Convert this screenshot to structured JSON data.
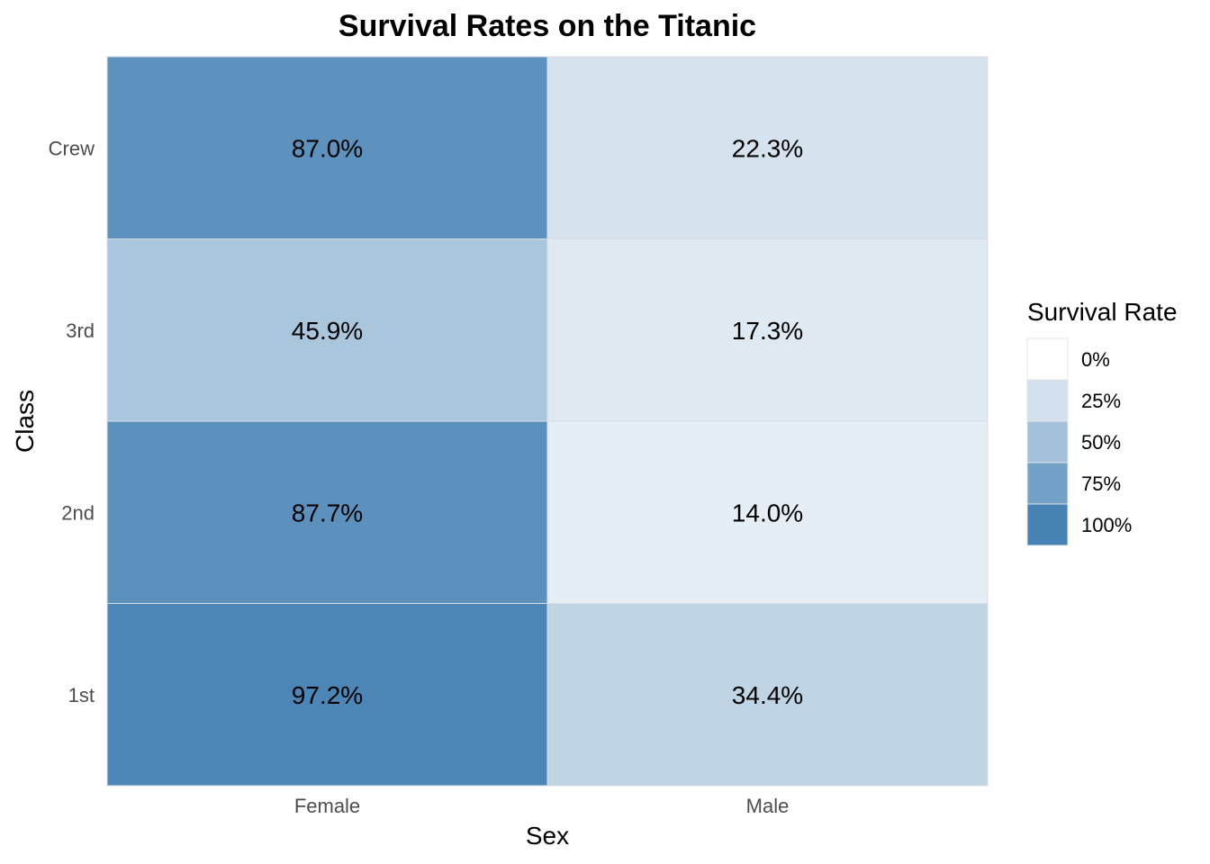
{
  "chart_data": {
    "type": "heatmap",
    "title": "Survival Rates on the Titanic",
    "xlabel": "Sex",
    "ylabel": "Class",
    "x_categories": [
      "Female",
      "Male"
    ],
    "y_categories": [
      "1st",
      "2nd",
      "3rd",
      "Crew"
    ],
    "cells": [
      {
        "x": "Female",
        "y": "Crew",
        "value": 87.0,
        "label": "87.0%"
      },
      {
        "x": "Male",
        "y": "Crew",
        "value": 22.3,
        "label": "22.3%"
      },
      {
        "x": "Female",
        "y": "3rd",
        "value": 45.9,
        "label": "45.9%"
      },
      {
        "x": "Male",
        "y": "3rd",
        "value": 17.3,
        "label": "17.3%"
      },
      {
        "x": "Female",
        "y": "2nd",
        "value": 87.7,
        "label": "87.7%"
      },
      {
        "x": "Male",
        "y": "2nd",
        "value": 14.0,
        "label": "14.0%"
      },
      {
        "x": "Female",
        "y": "1st",
        "value": 97.2,
        "label": "97.2%"
      },
      {
        "x": "Male",
        "y": "1st",
        "value": 34.4,
        "label": "34.4%"
      }
    ],
    "legend": {
      "title": "Survival Rate",
      "position": "right",
      "entries": [
        {
          "value": 0,
          "label": "0%"
        },
        {
          "value": 25,
          "label": "25%"
        },
        {
          "value": 50,
          "label": "50%"
        },
        {
          "value": 75,
          "label": "75%"
        },
        {
          "value": 100,
          "label": "100%"
        }
      ]
    },
    "color_scale": {
      "low": "#ffffff",
      "high": "#4682b4",
      "domain": [
        0,
        100
      ]
    },
    "grid": false
  }
}
